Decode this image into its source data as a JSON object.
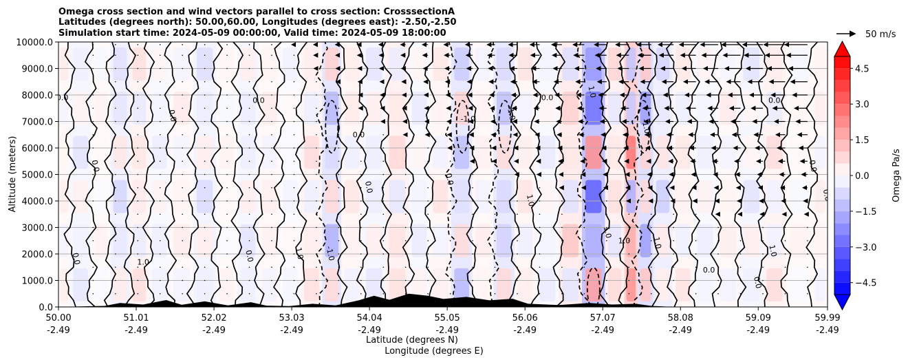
{
  "chart_data": {
    "type": "heatmap",
    "title_lines": [
      "Omega cross section and wind vectors parallel to cross section: CrosssectionA",
      "Latitudes (degrees north): 50.00,60.00, Longitudes (degrees east): -2.50,-2.50",
      "Simulation start time: 2024-05-09 00:00:00, Valid time: 2024-05-09 18:00:00"
    ],
    "ylabel": "Altitude (meters)",
    "xlabel_lat": "Latitude (degrees N)",
    "xlabel_lon": "Longitude (degrees E)",
    "ylim": [
      0,
      10000
    ],
    "xlim": [
      50.0,
      59.99
    ],
    "y_ticks": [
      0,
      1000,
      2000,
      3000,
      4000,
      5000,
      6000,
      7000,
      8000,
      9000,
      10000
    ],
    "y_tick_labels": [
      "0.0",
      "1000.0",
      "2000.0",
      "3000.0",
      "4000.0",
      "5000.0",
      "6000.0",
      "7000.0",
      "8000.0",
      "9000.0",
      "10000.0"
    ],
    "x_ticks": [
      50.0,
      51.01,
      52.02,
      53.03,
      54.04,
      55.05,
      56.06,
      57.07,
      58.08,
      59.09,
      59.99
    ],
    "x_tick_labels": [
      {
        "lat": "50.00",
        "lon": "-2.49"
      },
      {
        "lat": "51.01",
        "lon": "-2.49"
      },
      {
        "lat": "52.02",
        "lon": "-2.49"
      },
      {
        "lat": "53.03",
        "lon": "-2.49"
      },
      {
        "lat": "54.04",
        "lon": "-2.49"
      },
      {
        "lat": "55.05",
        "lon": "-2.49"
      },
      {
        "lat": "56.06",
        "lon": "-2.49"
      },
      {
        "lat": "57.07",
        "lon": "-2.49"
      },
      {
        "lat": "58.08",
        "lon": "-2.49"
      },
      {
        "lat": "59.09",
        "lon": "-2.49"
      },
      {
        "lat": "59.99",
        "lon": "-2.49"
      }
    ],
    "grid": "horizontal",
    "colorbar": {
      "label": "Omega Pa/s",
      "range": [
        -5.0,
        5.0
      ],
      "ticks": [
        -4.5,
        -3.0,
        -1.5,
        0.0,
        1.5,
        3.0,
        4.5
      ],
      "tick_labels": [
        "−4.5",
        "−3.0",
        "−1.5",
        "0.0",
        "1.5",
        "3.0",
        "4.5"
      ],
      "cmap": "bwr",
      "levels": 20,
      "extend": "both"
    },
    "quiver_key": {
      "label": "50 m/s",
      "speed": 50
    },
    "columns": [
      {
        "lat": 50.0,
        "omega": 0.3
      },
      {
        "lat": 50.3,
        "omega": -0.4
      },
      {
        "lat": 50.55,
        "omega": 0.2
      },
      {
        "lat": 50.8,
        "omega": -0.6
      },
      {
        "lat": 51.05,
        "omega": 0.5
      },
      {
        "lat": 51.3,
        "omega": -0.3
      },
      {
        "lat": 51.6,
        "omega": 0.3
      },
      {
        "lat": 51.9,
        "omega": -0.5
      },
      {
        "lat": 52.2,
        "omega": 0.2
      },
      {
        "lat": 52.45,
        "omega": -0.4
      },
      {
        "lat": 52.75,
        "omega": 0.3
      },
      {
        "lat": 53.0,
        "omega": -0.2
      },
      {
        "lat": 53.3,
        "omega": 0.5
      },
      {
        "lat": 53.55,
        "omega": -1.1
      },
      {
        "lat": 53.8,
        "omega": 0.4
      },
      {
        "lat": 54.1,
        "omega": -0.4
      },
      {
        "lat": 54.4,
        "omega": 0.6
      },
      {
        "lat": 54.7,
        "omega": -0.3
      },
      {
        "lat": 54.95,
        "omega": 0.4
      },
      {
        "lat": 55.25,
        "omega": -1.0
      },
      {
        "lat": 55.5,
        "omega": 0.3
      },
      {
        "lat": 55.8,
        "omega": -0.9
      },
      {
        "lat": 56.05,
        "omega": 0.4
      },
      {
        "lat": 56.35,
        "omega": -0.3
      },
      {
        "lat": 56.65,
        "omega": 0.8
      },
      {
        "lat": 56.95,
        "omega": -2.6
      },
      {
        "lat": 57.25,
        "omega": 0.6
      },
      {
        "lat": 57.45,
        "omega": 2.0
      },
      {
        "lat": 57.6,
        "omega": -1.4
      },
      {
        "lat": 57.85,
        "omega": -0.7
      },
      {
        "lat": 58.1,
        "omega": 0.4
      },
      {
        "lat": 58.4,
        "omega": -0.3
      },
      {
        "lat": 58.7,
        "omega": 0.3
      },
      {
        "lat": 59.0,
        "omega": -0.4
      },
      {
        "lat": 59.3,
        "omega": 0.5
      },
      {
        "lat": 59.6,
        "omega": 0.2
      },
      {
        "lat": 59.99,
        "omega": 0.3
      }
    ],
    "contour_levels": [
      -1.0,
      0.0,
      1.0
    ],
    "contour_labels": [
      {
        "lat": 50.05,
        "alt": 7800,
        "text": "0.0"
      },
      {
        "lat": 50.2,
        "alt": 1800,
        "text": "0.0"
      },
      {
        "lat": 50.45,
        "alt": 5300,
        "text": "0.0"
      },
      {
        "lat": 51.1,
        "alt": 1600,
        "text": "1.0"
      },
      {
        "lat": 51.45,
        "alt": 7200,
        "text": "0.0"
      },
      {
        "lat": 52.45,
        "alt": 1900,
        "text": "0.0"
      },
      {
        "lat": 52.6,
        "alt": 7700,
        "text": "0.0"
      },
      {
        "lat": 53.1,
        "alt": 2000,
        "text": "1.0"
      },
      {
        "lat": 53.5,
        "alt": 2000,
        "text": "-1.0"
      },
      {
        "lat": 53.9,
        "alt": 6400,
        "text": "0.0"
      },
      {
        "lat": 54.0,
        "alt": 4500,
        "text": "0.0"
      },
      {
        "lat": 55.05,
        "alt": 4800,
        "text": "0.0"
      },
      {
        "lat": 55.32,
        "alt": 7000,
        "text": "-1.0"
      },
      {
        "lat": 55.85,
        "alt": 7300,
        "text": "-1.0"
      },
      {
        "lat": 56.1,
        "alt": 4000,
        "text": "1.0"
      },
      {
        "lat": 56.35,
        "alt": 7800,
        "text": "0.0"
      },
      {
        "lat": 56.9,
        "alt": 8100,
        "text": "1.0"
      },
      {
        "lat": 57.1,
        "alt": 2800,
        "text": "1.0"
      },
      {
        "lat": 57.35,
        "alt": 2400,
        "text": "1.0"
      },
      {
        "lat": 57.6,
        "alt": 6800,
        "text": "-1.0"
      },
      {
        "lat": 57.75,
        "alt": 2400,
        "text": "1.0"
      },
      {
        "lat": 58.45,
        "alt": 1300,
        "text": "0.0"
      },
      {
        "lat": 59.05,
        "alt": 900,
        "text": "0.0"
      },
      {
        "lat": 59.25,
        "alt": 2100,
        "text": "1.0"
      },
      {
        "lat": 59.3,
        "alt": 7700,
        "text": "0.0"
      },
      {
        "lat": 59.77,
        "alt": 5300,
        "text": "0.0"
      },
      {
        "lat": 59.95,
        "alt": 4200,
        "text": "0.0"
      }
    ],
    "terrain": [
      {
        "lat": 50.0,
        "alt": 0
      },
      {
        "lat": 50.6,
        "alt": 40
      },
      {
        "lat": 50.8,
        "alt": 150
      },
      {
        "lat": 51.1,
        "alt": 90
      },
      {
        "lat": 51.4,
        "alt": 260
      },
      {
        "lat": 51.6,
        "alt": 80
      },
      {
        "lat": 51.9,
        "alt": 210
      },
      {
        "lat": 52.2,
        "alt": 60
      },
      {
        "lat": 52.5,
        "alt": 180
      },
      {
        "lat": 52.7,
        "alt": 50
      },
      {
        "lat": 53.0,
        "alt": 30
      },
      {
        "lat": 53.3,
        "alt": 120
      },
      {
        "lat": 53.6,
        "alt": 60
      },
      {
        "lat": 53.9,
        "alt": 250
      },
      {
        "lat": 54.1,
        "alt": 420
      },
      {
        "lat": 54.3,
        "alt": 270
      },
      {
        "lat": 54.55,
        "alt": 500
      },
      {
        "lat": 54.8,
        "alt": 420
      },
      {
        "lat": 55.0,
        "alt": 300
      },
      {
        "lat": 55.3,
        "alt": 380
      },
      {
        "lat": 55.6,
        "alt": 250
      },
      {
        "lat": 55.9,
        "alt": 310
      },
      {
        "lat": 56.1,
        "alt": 120
      },
      {
        "lat": 56.5,
        "alt": 70
      },
      {
        "lat": 56.9,
        "alt": 150
      },
      {
        "lat": 57.2,
        "alt": 90
      },
      {
        "lat": 57.5,
        "alt": 120
      },
      {
        "lat": 57.7,
        "alt": 40
      },
      {
        "lat": 58.0,
        "alt": 0
      },
      {
        "lat": 59.99,
        "alt": 0
      }
    ]
  }
}
